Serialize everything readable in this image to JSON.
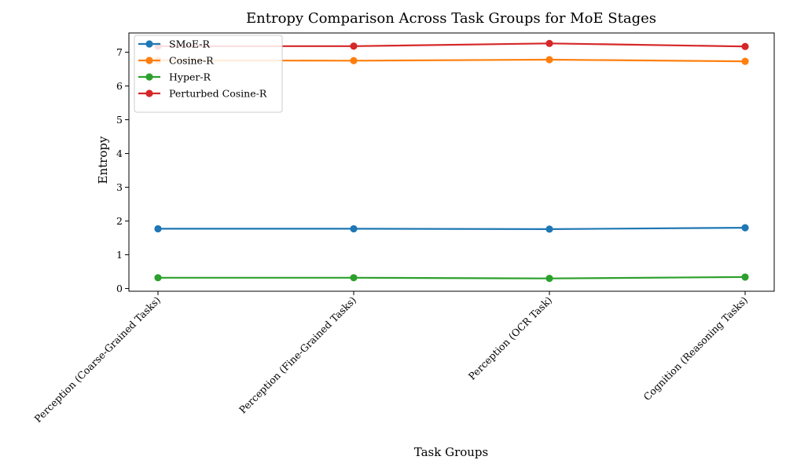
{
  "chart_data": {
    "type": "line",
    "title": "Entropy Comparison Across Task Groups for MoE Stages",
    "xlabel": "Task Groups",
    "ylabel": "Entropy",
    "categories": [
      "Perception (Coarse-Grained Tasks)",
      "Perception (Fine-Grained Tasks)",
      "Perception (OCR Task)",
      "Cognition (Reasoning Tasks)"
    ],
    "ylim": [
      -0.08,
      7.57
    ],
    "yticks": [
      "0",
      "1",
      "2",
      "3",
      "4",
      "5",
      "6",
      "7"
    ],
    "grid": false,
    "legend_position": "top-left",
    "series": [
      {
        "name": "SMoE-R",
        "color": "#1f77b4",
        "values": [
          1.77,
          1.77,
          1.76,
          1.8
        ]
      },
      {
        "name": "Cosine-R",
        "color": "#ff7f0e",
        "values": [
          6.76,
          6.75,
          6.78,
          6.73
        ]
      },
      {
        "name": "Hyper-R",
        "color": "#2ca02c",
        "values": [
          0.32,
          0.32,
          0.3,
          0.34
        ]
      },
      {
        "name": "Perturbed Cosine-R",
        "color": "#d62728",
        "values": [
          7.18,
          7.18,
          7.26,
          7.17
        ]
      }
    ]
  }
}
